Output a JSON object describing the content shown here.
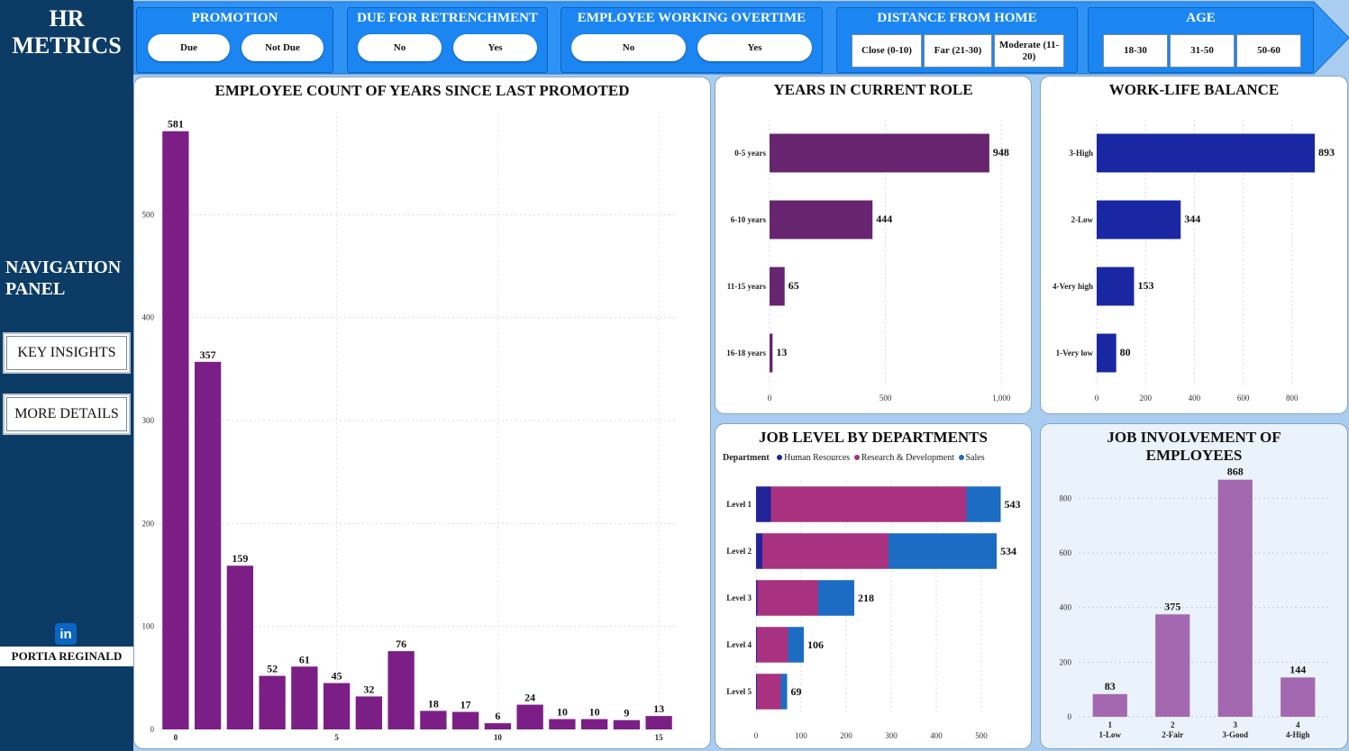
{
  "sidebar": {
    "brand_line1": "HR",
    "brand_line2": "METRICS",
    "nav_line1": "NAVIGATION",
    "nav_line2": "PANEL",
    "key_insights": "KEY INSIGHTS",
    "more_details": "MORE DETAILS",
    "linkedin_glyph": "in",
    "author": "PORTIA REGINALD"
  },
  "slicers": {
    "promotion": {
      "title": "PROMOTION",
      "options": [
        "Due",
        "Not Due"
      ]
    },
    "retrenchment": {
      "title": "DUE FOR RETRENCHMENT",
      "options": [
        "No",
        "Yes"
      ]
    },
    "overtime": {
      "title": "EMPLOYEE WORKING OVERTIME",
      "options": [
        "No",
        "Yes"
      ]
    },
    "distance": {
      "title": "DISTANCE FROM HOME",
      "options": [
        "Close (0-10)",
        "Far (21-30)",
        "Moderate (11-20)"
      ]
    },
    "age": {
      "title": "AGE",
      "options": [
        "18-30",
        "31-50",
        "50-60"
      ]
    }
  },
  "colors": {
    "purple": "#7b1f86",
    "role_purple": "#66256e",
    "navy": "#1a27a3",
    "hr": "#23239a",
    "rnd": "#a8327f",
    "sales": "#1c6cc4",
    "involve": "#a468b0",
    "slicer_blue": "#1b86f2",
    "sidebar": "#0c3c66"
  },
  "charts": {
    "promoted": {
      "title": "EMPLOYEE COUNT OF YEARS SINCE LAST PROMOTED",
      "type": "bar",
      "x": [
        0,
        1,
        2,
        3,
        4,
        5,
        6,
        7,
        8,
        9,
        10,
        11,
        12,
        13,
        14,
        15
      ],
      "values": [
        581,
        357,
        159,
        52,
        61,
        45,
        32,
        76,
        18,
        17,
        6,
        24,
        10,
        10,
        9,
        13
      ],
      "xticks": [
        0,
        5,
        10,
        15
      ],
      "yticks": [
        0,
        100,
        200,
        300,
        400,
        500
      ],
      "ylim": [
        0,
        600
      ]
    },
    "role": {
      "title": "YEARS IN CURRENT ROLE",
      "type": "bar",
      "categories": [
        "0-5 years",
        "6-10 years",
        "11-15 years",
        "16-18 years"
      ],
      "values": [
        948,
        444,
        65,
        13
      ],
      "xticks": [
        "0",
        "500",
        "1,000"
      ],
      "xlim": [
        0,
        1100
      ]
    },
    "worklife": {
      "title": "WORK-LIFE BALANCE",
      "type": "bar",
      "categories": [
        "3-High",
        "2-Low",
        "4-Very high",
        "1-Very low"
      ],
      "values": [
        893,
        344,
        153,
        80
      ],
      "xticks": [
        0,
        200,
        400,
        600,
        800
      ],
      "xlim": [
        0,
        1000
      ]
    },
    "joblevel": {
      "title": "JOB LEVEL BY DEPARTMENTS",
      "type": "bar",
      "legend_title": "Department",
      "categories": [
        "Level 1",
        "Level 2",
        "Level 3",
        "Level 4",
        "Level 5"
      ],
      "series": [
        {
          "name": "Human Resources",
          "values": [
            33,
            14,
            3,
            2,
            2
          ]
        },
        {
          "name": "Research & Development",
          "values": [
            434,
            280,
            135,
            69,
            53
          ]
        },
        {
          "name": "Sales",
          "values": [
            76,
            240,
            80,
            35,
            14
          ]
        }
      ],
      "totals": [
        543,
        534,
        218,
        106,
        69
      ],
      "xticks": [
        0,
        100,
        200,
        300,
        400,
        500
      ],
      "xlim": [
        0,
        580
      ]
    },
    "involvement": {
      "title_line1": "JOB INVOLVEMENT OF",
      "title_line2": "EMPLOYEES",
      "type": "bar",
      "categories": [
        [
          "1",
          "1-Low"
        ],
        [
          "2",
          "2-Fair"
        ],
        [
          "3",
          "3-Good"
        ],
        [
          "4",
          "4-High"
        ]
      ],
      "values": [
        83,
        375,
        868,
        144
      ],
      "yticks": [
        0,
        200,
        400,
        600,
        800
      ],
      "ylim": [
        0,
        900
      ]
    }
  }
}
